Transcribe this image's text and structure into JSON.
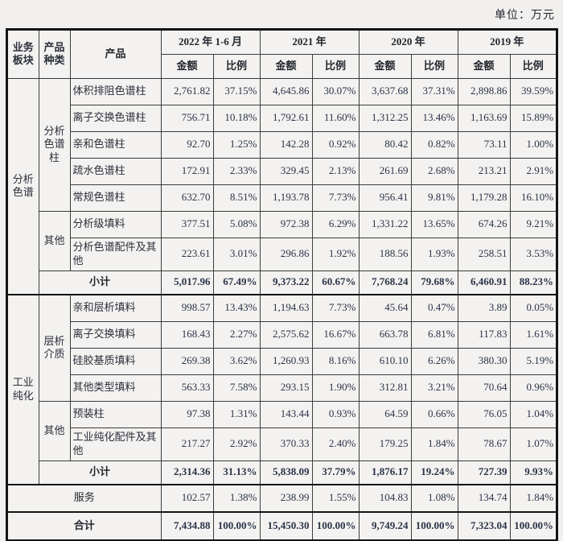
{
  "unit_label": "单位：万元",
  "header": {
    "segment": "业务\n板块",
    "category": "产品\n种类",
    "product": "产品",
    "periods": [
      "2022 年 1-6 月",
      "2021 年",
      "2020 年",
      "2019 年"
    ],
    "amount": "金额",
    "ratio": "比例"
  },
  "rows": [
    {
      "segment": "分析\n色谱",
      "category": "分析\n色谱\n柱",
      "product": "体积排阻色谱柱",
      "values": [
        "2,761.82",
        "37.15%",
        "4,645.86",
        "30.07%",
        "3,637.68",
        "37.31%",
        "2,898.86",
        "39.59%"
      ]
    },
    {
      "product": "离子交换色谱柱",
      "values": [
        "756.71",
        "10.18%",
        "1,792.61",
        "11.60%",
        "1,312.25",
        "13.46%",
        "1,163.69",
        "15.89%"
      ]
    },
    {
      "product": "亲和色谱柱",
      "values": [
        "92.70",
        "1.25%",
        "142.28",
        "0.92%",
        "80.42",
        "0.82%",
        "73.11",
        "1.00%"
      ]
    },
    {
      "product": "疏水色谱柱",
      "values": [
        "172.91",
        "2.33%",
        "329.45",
        "2.13%",
        "261.69",
        "2.68%",
        "213.21",
        "2.91%"
      ]
    },
    {
      "product": "常规色谱柱",
      "values": [
        "632.70",
        "8.51%",
        "1,193.78",
        "7.73%",
        "956.41",
        "9.81%",
        "1,179.28",
        "16.10%"
      ]
    },
    {
      "category": "其他",
      "product": "分析级填料",
      "values": [
        "377.51",
        "5.08%",
        "972.38",
        "6.29%",
        "1,331.22",
        "13.65%",
        "674.26",
        "9.21%"
      ]
    },
    {
      "product": "分析色谱配件及其他",
      "values": [
        "223.61",
        "3.01%",
        "296.86",
        "1.92%",
        "188.56",
        "1.93%",
        "258.51",
        "3.53%"
      ]
    },
    {
      "label": "小计",
      "values": [
        "5,017.96",
        "67.49%",
        "9,373.22",
        "60.67%",
        "7,768.24",
        "79.68%",
        "6,460.91",
        "88.23%"
      ]
    },
    {
      "segment": "工业\n纯化",
      "category": "层析\n介质",
      "product": "亲和层析填料",
      "values": [
        "998.57",
        "13.43%",
        "1,194.63",
        "7.73%",
        "45.64",
        "0.47%",
        "3.89",
        "0.05%"
      ]
    },
    {
      "product": "离子交换填料",
      "values": [
        "168.43",
        "2.27%",
        "2,575.62",
        "16.67%",
        "663.78",
        "6.81%",
        "117.83",
        "1.61%"
      ]
    },
    {
      "product": "硅胶基质填料",
      "values": [
        "269.38",
        "3.62%",
        "1,260.93",
        "8.16%",
        "610.10",
        "6.26%",
        "380.30",
        "5.19%"
      ]
    },
    {
      "product": "其他类型填料",
      "values": [
        "563.33",
        "7.58%",
        "293.15",
        "1.90%",
        "312.81",
        "3.21%",
        "70.64",
        "0.96%"
      ]
    },
    {
      "category": "其他",
      "product": "预装柱",
      "values": [
        "97.38",
        "1.31%",
        "143.44",
        "0.93%",
        "64.59",
        "0.66%",
        "76.05",
        "1.04%"
      ]
    },
    {
      "product": "工业纯化配件及其他",
      "values": [
        "217.27",
        "2.92%",
        "370.33",
        "2.40%",
        "179.25",
        "1.84%",
        "78.67",
        "1.07%"
      ]
    },
    {
      "label": "小计",
      "values": [
        "2,314.36",
        "31.13%",
        "5,838.09",
        "37.79%",
        "1,876.17",
        "19.24%",
        "727.39",
        "9.93%"
      ]
    },
    {
      "label": "服务",
      "values": [
        "102.57",
        "1.38%",
        "238.99",
        "1.55%",
        "104.83",
        "1.08%",
        "134.74",
        "1.84%"
      ]
    },
    {
      "label": "合计",
      "values": [
        "7,434.88",
        "100.00%",
        "15,450.30",
        "100.00%",
        "9,749.24",
        "100.00%",
        "7,323.04",
        "100.00%"
      ]
    }
  ]
}
